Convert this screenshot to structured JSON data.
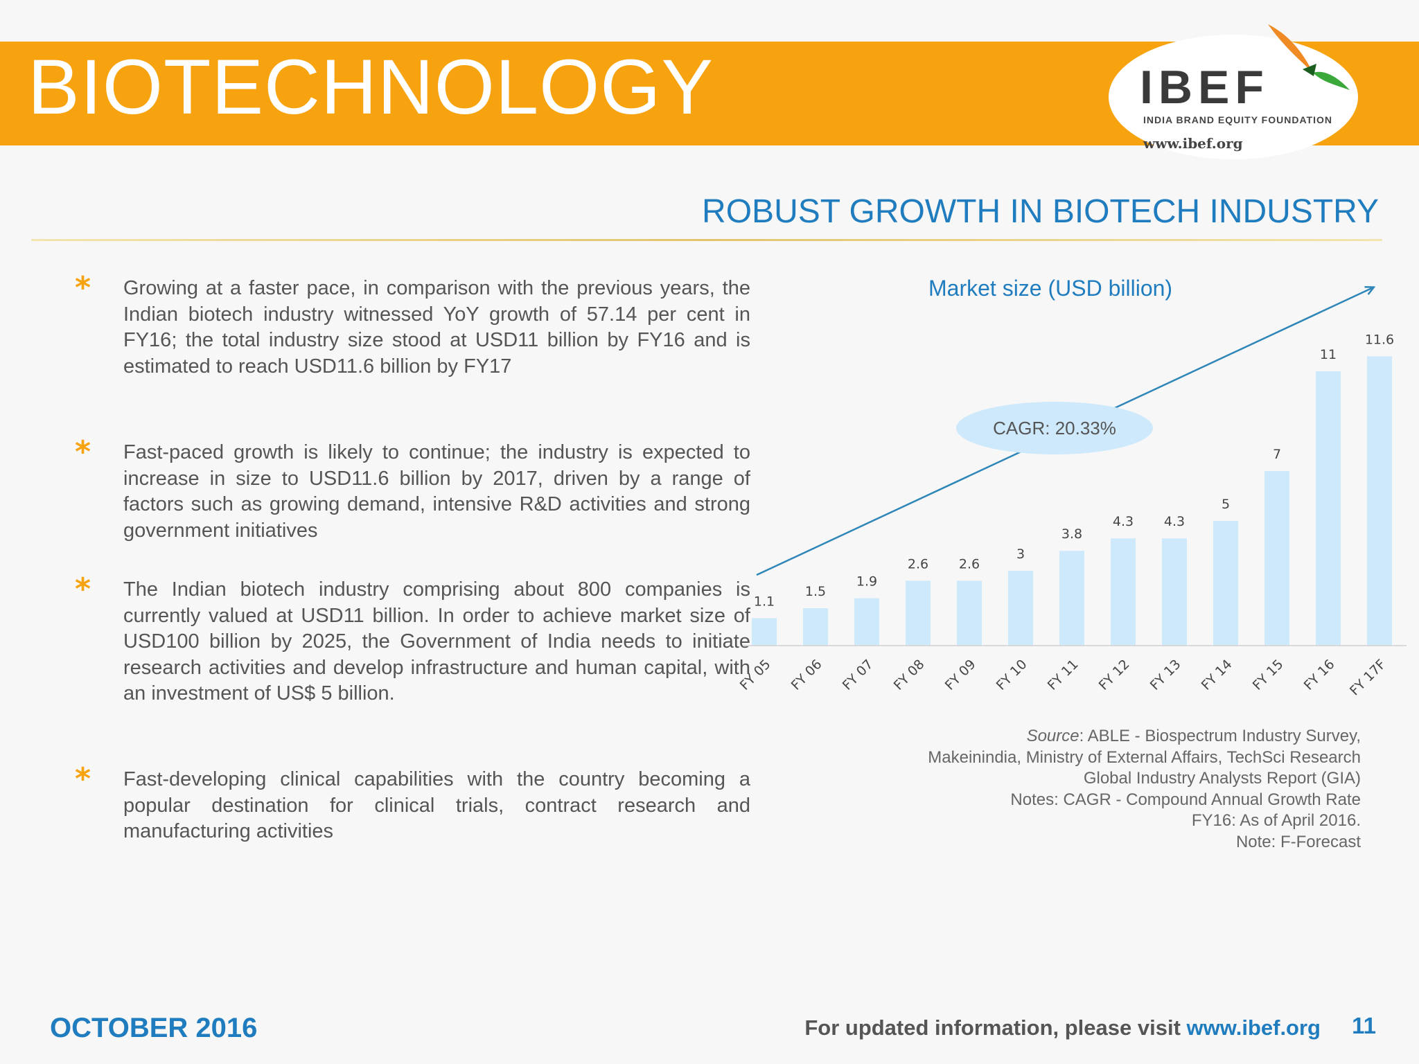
{
  "header": {
    "title": "BIOTECHNOLOGY",
    "logo": {
      "wordmark": "IBEF",
      "tagline": "INDIA BRAND EQUITY FOUNDATION",
      "url": "www.ibef.org"
    },
    "colors": {
      "banner": "#f7a20f",
      "accent_blue": "#1f7cbe"
    }
  },
  "subtitle": "ROBUST GROWTH IN BIOTECH INDUSTRY",
  "bullets": [
    "Growing at a faster pace, in comparison with the previous years, the Indian biotech industry witnessed YoY growth of 57.14 per cent in FY16; the total industry size stood at USD11 billion by FY16 and is estimated to reach USD11.6 billion by FY17",
    "Fast-paced growth is likely to continue; the industry is expected to increase in size to USD11.6 billion by 2017, driven by a range of factors such as growing demand, intensive R&D activities and strong government initiatives",
    "The Indian biotech industry comprising about 800 companies is currently valued at USD11 billion. In order to achieve market size of USD100 billion by 2025, the Government of India needs to initiate research activities and develop infrastructure and human capital, with an investment of US$ 5 billion.",
    "Fast-developing clinical capabilities with the country becoming a popular destination for clinical trials, contract research and manufacturing activities"
  ],
  "bullet_icon": "asterisk-icon",
  "chart_data": {
    "type": "bar",
    "title": "Market size (USD billion)",
    "categories": [
      "FY 05",
      "FY 06",
      "FY 07",
      "FY 08",
      "FY 09",
      "FY 10",
      "FY 11",
      "FY 12",
      "FY 13",
      "FY 14",
      "FY 15",
      "FY 16",
      "FY 17F"
    ],
    "values": [
      1.1,
      1.5,
      1.9,
      2.6,
      2.6,
      3,
      3.8,
      4.3,
      4.3,
      5,
      7,
      11,
      11.6
    ],
    "data_labels": [
      "1.1",
      "1.5",
      "1.9",
      "2.6",
      "2.6",
      "3",
      "3.8",
      "4.3",
      "4.3",
      "5",
      "7",
      "11",
      "11.6"
    ],
    "ylim": [
      0,
      12
    ],
    "grid": false,
    "bar_color": "#cde9fb",
    "annotation": "CAGR: 20.33%",
    "trend_arrow_color": "#2e86b8"
  },
  "source": {
    "lead": "Source",
    "lines": [
      ": ABLE - Biospectrum Industry Survey,",
      "Makeinindia, Ministry of External Affairs, TechSci Research",
      "Global Industry Analysts Report (GIA)",
      "Notes: CAGR - Compound Annual Growth Rate",
      "FY16: As of April 2016.",
      "Note: F-Forecast"
    ]
  },
  "footer": {
    "date": "OCTOBER 2016",
    "visit_text": "For updated information, please visit ",
    "url": "www.ibef.org",
    "page_number": "11"
  }
}
